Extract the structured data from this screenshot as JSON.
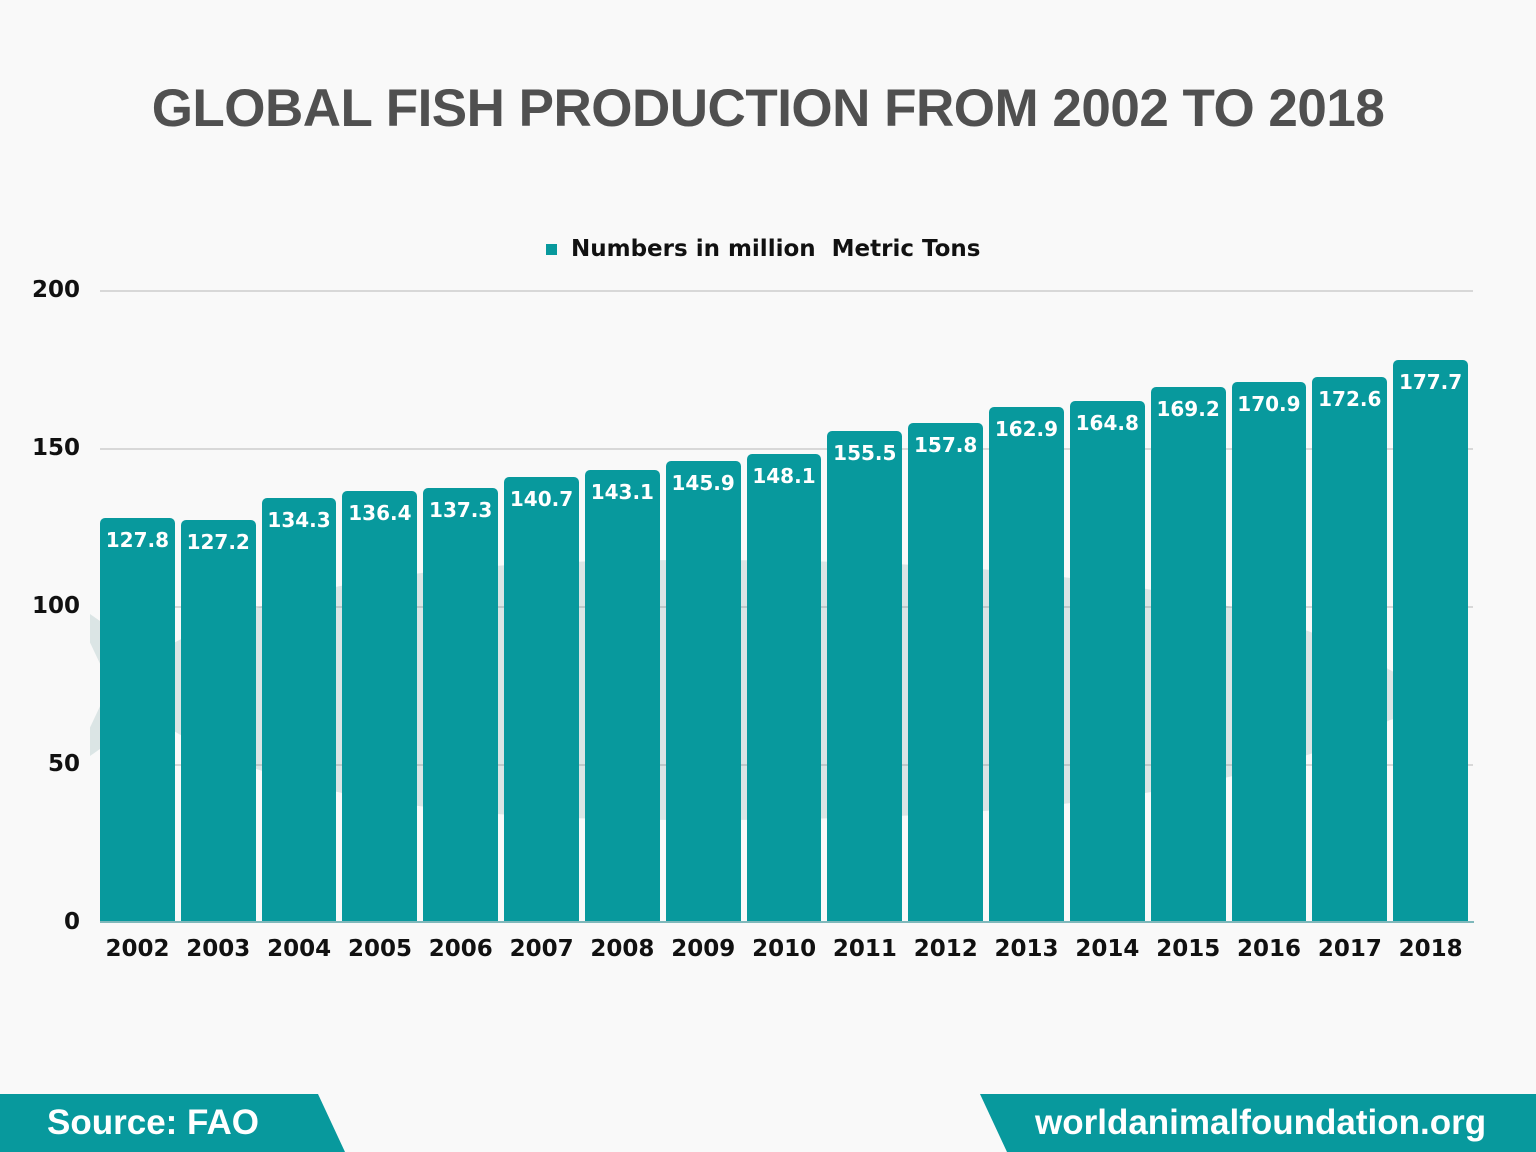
{
  "title": "GLOBAL FISH PRODUCTION FROM 2002 TO 2018",
  "colors": {
    "bar": "#08999d",
    "background": "#f9f9f9",
    "title": "#505050",
    "footer": "#08999d"
  },
  "legend": {
    "label": "Numbers in million  Metric Tons"
  },
  "y_axis": {
    "ticks": [
      "0",
      "50",
      "100",
      "150",
      "200"
    ]
  },
  "footer": {
    "source": "Source: FAO",
    "site": "worldanimalfoundation.org"
  },
  "chart_data": {
    "type": "bar",
    "title": "GLOBAL FISH PRODUCTION FROM 2002 TO 2018",
    "xlabel": "",
    "ylabel": "",
    "ylim": [
      0,
      200
    ],
    "yticks": [
      0,
      50,
      100,
      150,
      200
    ],
    "grid": true,
    "legend_position": "top",
    "categories": [
      "2002",
      "2003",
      "2004",
      "2005",
      "2006",
      "2007",
      "2008",
      "2009",
      "2010",
      "2011",
      "2012",
      "2013",
      "2014",
      "2015",
      "2016",
      "2017",
      "2018"
    ],
    "series": [
      {
        "name": "Numbers in million  Metric Tons",
        "values": [
          127.8,
          127.2,
          134.3,
          136.4,
          137.3,
          140.7,
          143.1,
          145.9,
          148.1,
          155.5,
          157.8,
          162.9,
          164.8,
          169.2,
          170.9,
          172.6,
          177.7
        ],
        "labels": [
          "127.8",
          "127.2",
          "134.3",
          "136.4",
          "137.3",
          "140.7",
          "143.1",
          "145.9",
          "148.1",
          "155.5",
          "157.8",
          "162.9",
          "164.8",
          "169.2",
          "170.9",
          "172.6",
          "177.7"
        ]
      }
    ],
    "source": "Source: FAO"
  }
}
